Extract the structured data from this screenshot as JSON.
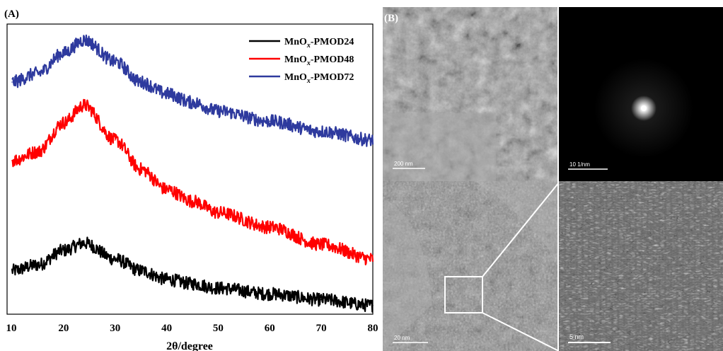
{
  "panel_a_label": "(A)",
  "panel_b_label": "(B)",
  "chart_data": {
    "type": "line",
    "title": "",
    "xlabel": "2θ/degree",
    "ylabel": "",
    "xlim": [
      10,
      80
    ],
    "x_ticks": [
      "10",
      "20",
      "30",
      "40",
      "50",
      "60",
      "70",
      "80"
    ],
    "grid": false,
    "legend_position": "top-right",
    "series": [
      {
        "name_main": "MnO",
        "name_sub": "x",
        "name_rest": "-PMOD24",
        "color": "#000000",
        "x": [
          10,
          15,
          20,
          24,
          30,
          35,
          40,
          45,
          50,
          60,
          70,
          80
        ],
        "y": [
          0.15,
          0.17,
          0.22,
          0.245,
          0.19,
          0.15,
          0.12,
          0.105,
          0.09,
          0.07,
          0.05,
          0.03
        ]
      },
      {
        "name_main": "MnO",
        "name_sub": "x",
        "name_rest": "-PMOD48",
        "color": "#ff0000",
        "x": [
          10,
          15,
          20,
          24,
          30,
          35,
          40,
          45,
          50,
          60,
          70,
          80
        ],
        "y": [
          0.53,
          0.56,
          0.66,
          0.72,
          0.6,
          0.5,
          0.43,
          0.39,
          0.35,
          0.3,
          0.24,
          0.19
        ]
      },
      {
        "name_main": "MnO",
        "name_sub": "x",
        "name_rest": "-PMOD72",
        "color": "#2e3a9e",
        "x": [
          10,
          15,
          20,
          24,
          30,
          35,
          40,
          45,
          50,
          60,
          70,
          80
        ],
        "y": [
          0.8,
          0.83,
          0.9,
          0.945,
          0.87,
          0.8,
          0.76,
          0.73,
          0.7,
          0.665,
          0.63,
          0.6
        ]
      }
    ]
  },
  "micrographs": {
    "scale_bars": [
      "200 nm",
      "10 1/nm",
      "20 nm",
      "5 nm"
    ]
  }
}
